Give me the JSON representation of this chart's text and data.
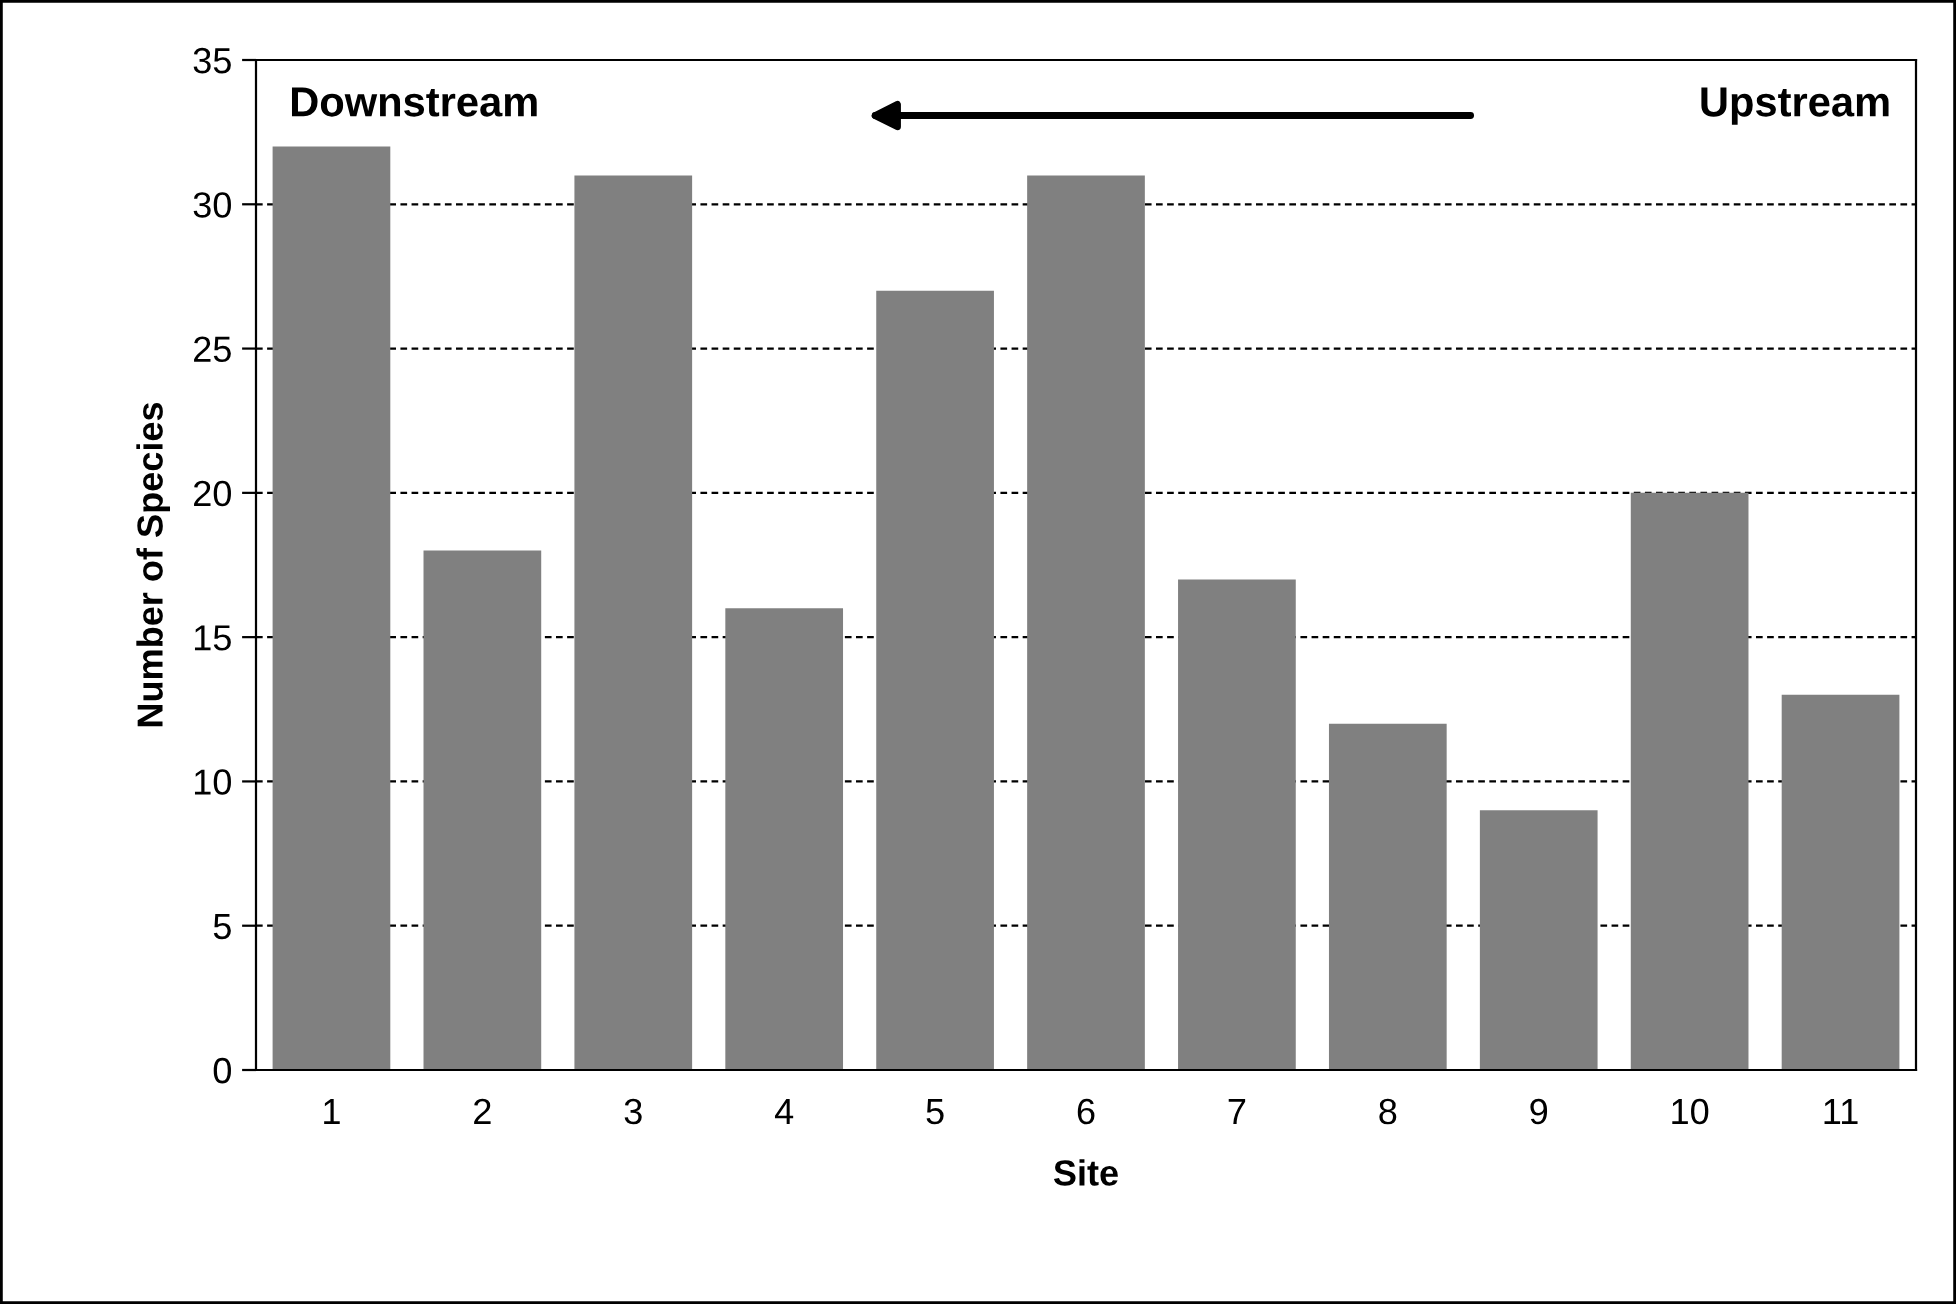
{
  "chart_data": {
    "type": "bar",
    "xlabel": "Site",
    "ylabel": "Number of Species",
    "categories": [
      "1",
      "2",
      "3",
      "4",
      "5",
      "6",
      "7",
      "8",
      "9",
      "10",
      "11"
    ],
    "values": [
      32,
      18,
      31,
      16,
      27,
      31,
      17,
      12,
      9,
      20,
      13
    ],
    "color": "#808080",
    "ylim": [
      0,
      35
    ],
    "yticks": [
      0,
      5,
      10,
      15,
      20,
      25,
      30,
      35
    ],
    "grid": "y",
    "annotations": [
      "Downstream",
      "Upstream"
    ]
  }
}
